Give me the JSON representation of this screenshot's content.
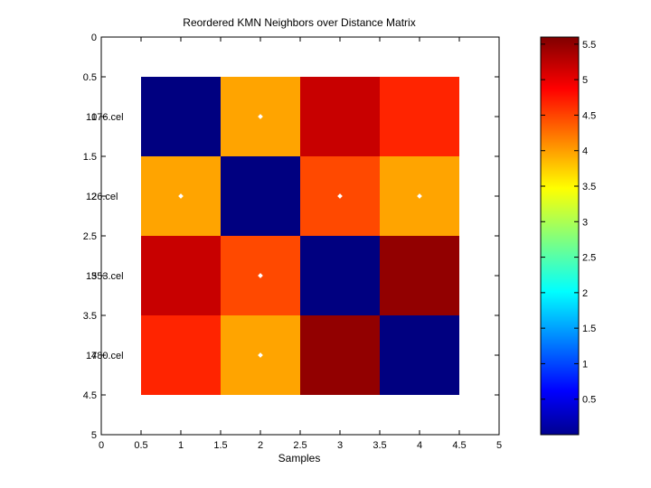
{
  "chart_data": [
    {
      "type": "heatmap",
      "title": "Reordered KMN Neighbors over Distance Matrix",
      "xlabel": "Samples",
      "ylabel": "",
      "xlim": [
        0,
        5
      ],
      "ylim": [
        0,
        5
      ],
      "y_reversed": true,
      "x_ticks": [
        "0",
        "0.5",
        "1",
        "1.5",
        "2",
        "2.5",
        "3",
        "3.5",
        "4",
        "4.5",
        "5"
      ],
      "y_ticks": [
        "0",
        "0.5",
        "1",
        "1.5",
        "2",
        "2.5",
        "3",
        "3.5",
        "4",
        "4.5",
        "5"
      ],
      "row_labels": [
        "1076.cel",
        "126.cel",
        "1553.cel",
        "1780.cel"
      ],
      "columns": [
        1,
        2,
        3,
        4
      ],
      "values": [
        [
          0.0,
          4.0,
          5.2,
          4.7
        ],
        [
          4.0,
          0.0,
          4.5,
          4.0
        ],
        [
          5.2,
          4.5,
          0.0,
          5.5
        ],
        [
          4.7,
          4.0,
          5.5,
          0.0
        ]
      ],
      "neighbor_markers": [
        {
          "row": 1,
          "col": 2
        },
        {
          "row": 2,
          "col": 1
        },
        {
          "row": 2,
          "col": 3
        },
        {
          "row": 2,
          "col": 4
        },
        {
          "row": 3,
          "col": 2
        },
        {
          "row": 4,
          "col": 2
        }
      ],
      "marker_color": "#ffffff",
      "grid": false,
      "colormap": "jet"
    },
    {
      "type": "colorbar",
      "range": [
        0,
        5.6
      ],
      "ticks": [
        "0.5",
        "1",
        "1.5",
        "2",
        "2.5",
        "3",
        "3.5",
        "4",
        "4.5",
        "5",
        "5.5"
      ],
      "tick_values": [
        0.5,
        1,
        1.5,
        2,
        2.5,
        3,
        3.5,
        4,
        4.5,
        5,
        5.5
      ],
      "colors": [
        "#00008f",
        "#0000ff",
        "#00ffff",
        "#ffff00",
        "#ff0000",
        "#800000"
      ]
    }
  ]
}
